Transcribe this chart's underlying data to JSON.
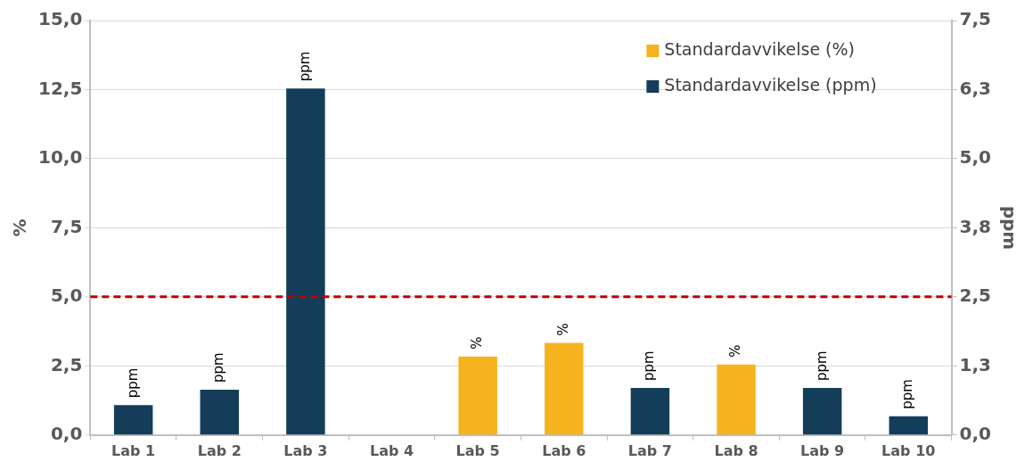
{
  "chart_data": {
    "type": "bar",
    "categories": [
      "Lab 1",
      "Lab 2",
      "Lab 3",
      "Lab 4",
      "Lab 5",
      "Lab 6",
      "Lab 7",
      "Lab 8",
      "Lab 9",
      "Lab 10"
    ],
    "series": [
      {
        "name": "Standardavvikelse (%)",
        "color": "#f5b41e",
        "values": [
          null,
          null,
          null,
          null,
          2.84,
          3.33,
          null,
          2.55,
          null,
          null
        ],
        "value_labels": [
          null,
          null,
          null,
          null,
          "%",
          "%",
          null,
          "%",
          null,
          null
        ]
      },
      {
        "name": "Standardavvikelse (ppm)",
        "color": "#143d59",
        "axis": "y2",
        "values": [
          0.54,
          0.82,
          6.27,
          null,
          null,
          null,
          0.85,
          null,
          0.85,
          0.34
        ],
        "value_labels": [
          "ppm",
          "ppm",
          "ppm",
          null,
          null,
          null,
          "ppm",
          null,
          "ppm",
          "ppm"
        ]
      }
    ],
    "ylabel": "%",
    "y2label": "ppm",
    "ylim": [
      0,
      15
    ],
    "yticks": [
      {
        "value": 0,
        "label": "0,0"
      },
      {
        "value": 2.5,
        "label": "2,5"
      },
      {
        "value": 5,
        "label": "5,0"
      },
      {
        "value": 7.5,
        "label": "7,5"
      },
      {
        "value": 10,
        "label": "10,0"
      },
      {
        "value": 12.5,
        "label": "12,5"
      },
      {
        "value": 15,
        "label": "15,0"
      }
    ],
    "y2lim": [
      0,
      7.5
    ],
    "y2ticks": [
      {
        "value": 0,
        "label": "0,0"
      },
      {
        "value": 1.25,
        "label": "1,3"
      },
      {
        "value": 2.5,
        "label": "2,5"
      },
      {
        "value": 3.75,
        "label": "3,8"
      },
      {
        "value": 5,
        "label": "5,0"
      },
      {
        "value": 6.25,
        "label": "6,3"
      },
      {
        "value": 7.5,
        "label": "7,5"
      }
    ],
    "ref_lines": [
      {
        "axis": "y",
        "value": 5,
        "color": "#c00000",
        "line_style": "dashed"
      }
    ],
    "grid": "y",
    "legend": "top right"
  }
}
